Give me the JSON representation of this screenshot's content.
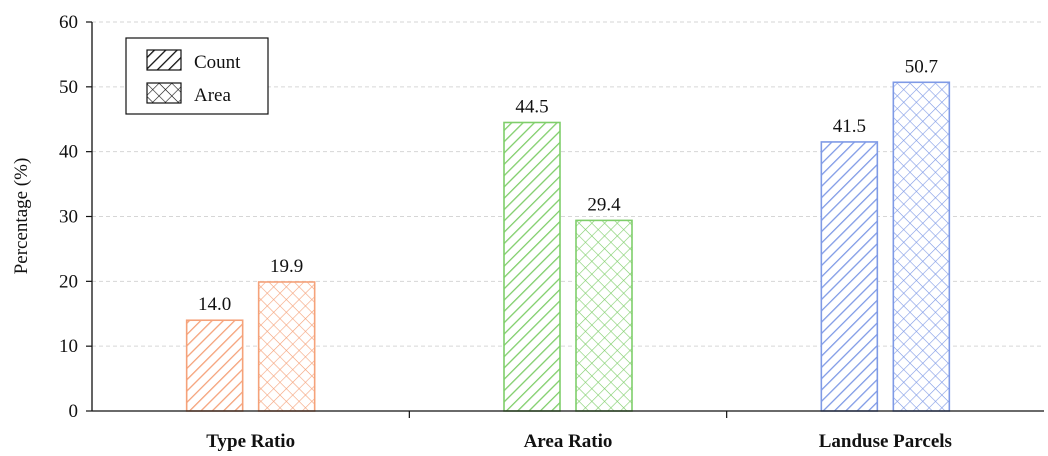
{
  "chart_data": {
    "type": "bar",
    "categories": [
      "Type Ratio",
      "Area Ratio",
      "Landuse Parcels"
    ],
    "series": [
      {
        "name": "Count",
        "values": [
          14.0,
          44.5,
          41.5
        ],
        "pattern": "diagonal-stripes"
      },
      {
        "name": "Area",
        "values": [
          19.9,
          29.4,
          50.7
        ],
        "pattern": "crosshatch"
      }
    ],
    "category_colors": [
      "#f5a27a",
      "#7fce6a",
      "#7f9ae6"
    ],
    "value_labels": [
      [
        "14.0",
        "19.9"
      ],
      [
        "44.5",
        "29.4"
      ],
      [
        "41.5",
        "50.7"
      ]
    ],
    "ylabel": "Percentage (%)",
    "ylim": [
      0,
      60
    ],
    "yticks": [
      0,
      10,
      20,
      30,
      40,
      50,
      60
    ],
    "ytick_labels": [
      "0",
      "10",
      "20",
      "30",
      "40",
      "50",
      "60"
    ],
    "grid": true,
    "legend": {
      "placement": "top-left",
      "entries": [
        "Count",
        "Area"
      ]
    }
  }
}
